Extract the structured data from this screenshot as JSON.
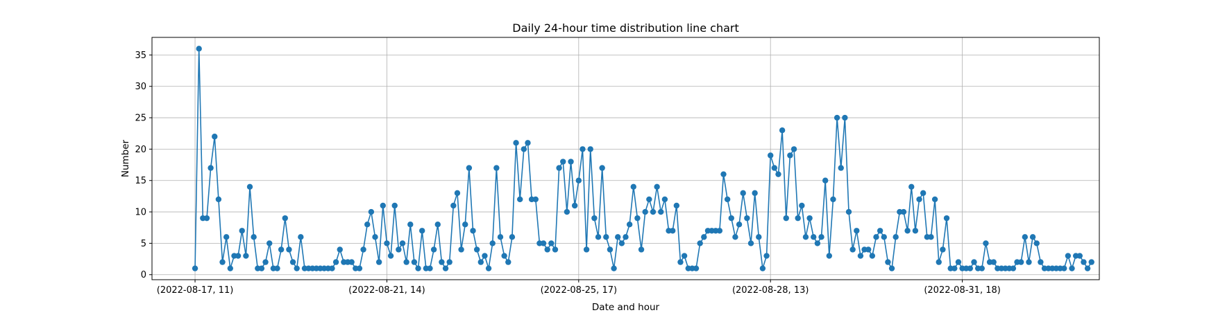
{
  "chart_data": {
    "type": "line",
    "title": "Daily 24-hour time distribution line chart",
    "xlabel": "Date and hour",
    "ylabel": "Number",
    "x_tick_labels": [
      "(2022-08-17, 11)",
      "(2022-08-21, 14)",
      "(2022-08-25, 17)",
      "(2022-08-28, 13)",
      "(2022-08-31, 18)"
    ],
    "x_tick_indices": [
      0,
      49,
      98,
      147,
      196
    ],
    "y_ticks": [
      0,
      5,
      10,
      15,
      20,
      25,
      30,
      35
    ],
    "ylim": [
      -0.8,
      37.8
    ],
    "xlim": [
      -11,
      231
    ],
    "grid": true,
    "marker": "circle",
    "line_color": "#1f77b4",
    "series": [
      {
        "values": [
          1,
          36,
          9,
          9,
          17,
          22,
          12,
          2,
          6,
          1,
          3,
          3,
          7,
          3,
          14,
          6,
          1,
          1,
          2,
          5,
          1,
          1,
          4,
          9,
          4,
          2,
          1,
          6,
          1,
          1,
          1,
          1,
          1,
          1,
          1,
          1,
          2,
          4,
          2,
          2,
          2,
          1,
          1,
          4,
          8,
          10,
          6,
          2,
          11,
          5,
          3,
          11,
          4,
          5,
          2,
          8,
          2,
          1,
          7,
          1,
          1,
          4,
          8,
          2,
          1,
          2,
          11,
          13,
          4,
          8,
          17,
          7,
          4,
          2,
          3,
          1,
          5,
          17,
          6,
          3,
          2,
          6,
          21,
          12,
          20,
          21,
          12,
          12,
          5,
          5,
          4,
          5,
          4,
          17,
          18,
          10,
          18,
          11,
          15,
          20,
          4,
          20,
          9,
          6,
          17,
          6,
          4,
          1,
          6,
          5,
          6,
          8,
          14,
          9,
          4,
          10,
          12,
          10,
          14,
          10,
          12,
          7,
          7,
          11,
          2,
          3,
          1,
          1,
          1,
          5,
          6,
          7,
          7,
          7,
          7,
          16,
          12,
          9,
          6,
          8,
          13,
          9,
          5,
          13,
          6,
          1,
          3,
          19,
          17,
          16,
          23,
          9,
          19,
          20,
          9,
          11,
          6,
          9,
          6,
          5,
          6,
          15,
          3,
          12,
          25,
          17,
          25,
          10,
          4,
          7,
          3,
          4,
          4,
          3,
          6,
          7,
          6,
          2,
          1,
          6,
          10,
          10,
          7,
          14,
          7,
          12,
          13,
          6,
          6,
          12,
          2,
          4,
          9,
          1,
          1,
          2,
          1,
          1,
          1,
          2,
          1,
          1,
          5,
          2,
          2,
          1,
          1,
          1,
          1,
          1,
          2,
          2,
          6,
          2,
          6,
          5,
          2,
          1,
          1,
          1,
          1,
          1,
          1,
          3,
          1,
          3,
          3,
          2,
          1,
          2
        ]
      }
    ]
  }
}
